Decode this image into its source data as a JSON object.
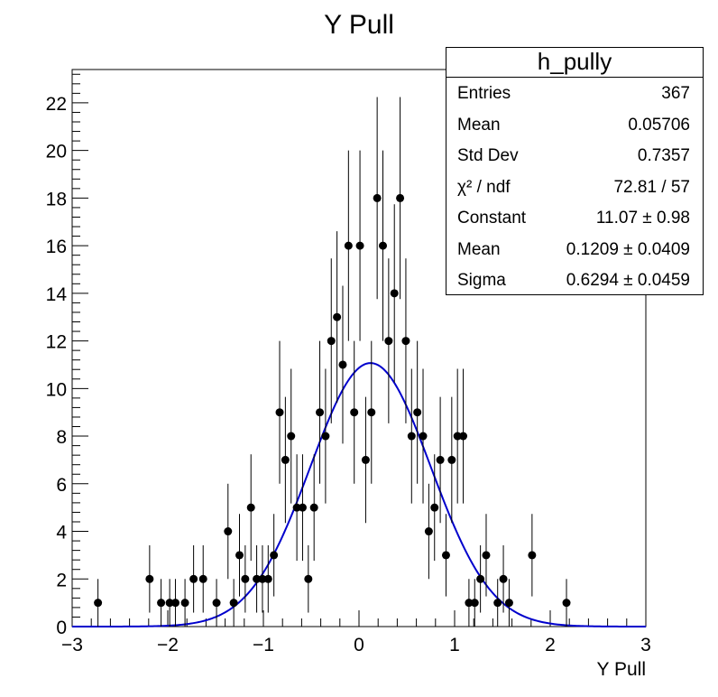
{
  "chart_data": {
    "type": "scatter",
    "title": "Y Pull",
    "xlabel": "Y Pull",
    "ylabel": "",
    "xlim": [
      -3,
      3
    ],
    "ylim": [
      0,
      23.4
    ],
    "x_ticks": [
      "−3",
      "−2",
      "−1",
      "0",
      "1",
      "2",
      "3"
    ],
    "y_ticks": [
      "0",
      "2",
      "4",
      "6",
      "8",
      "10",
      "12",
      "14",
      "16",
      "18",
      "20",
      "22"
    ],
    "grid": false,
    "marker_color": "#000000",
    "fit_color": "#0000cc",
    "series": [
      {
        "x": [
          -2.73,
          -2.19,
          -2.07,
          -1.98,
          -1.92,
          -1.82,
          -1.73,
          -1.63,
          -1.49,
          -1.37,
          -1.31,
          -1.25,
          -1.19,
          -1.13,
          -1.07,
          -1.01,
          -0.95,
          -0.89,
          -0.83,
          -0.77,
          -0.71,
          -0.65,
          -0.59,
          -0.53,
          -0.47,
          -0.41,
          -0.35,
          -0.29,
          -0.23,
          -0.17,
          -0.11,
          -0.05,
          0.01,
          0.07,
          0.13,
          0.19,
          0.25,
          0.31,
          0.37,
          0.43,
          0.49,
          0.55,
          0.61,
          0.67,
          0.73,
          0.79,
          0.85,
          0.91,
          0.97,
          1.03,
          1.09,
          1.15,
          1.21,
          1.27,
          1.33,
          1.45,
          1.51,
          1.57,
          1.81,
          2.17
        ],
        "y": [
          1,
          2,
          1,
          1,
          1,
          1,
          2,
          2,
          1,
          4,
          1,
          3,
          2,
          5,
          2,
          2,
          2,
          3,
          9,
          7,
          8,
          5,
          5,
          2,
          5,
          9,
          8,
          12,
          13,
          11,
          16,
          9,
          16,
          7,
          9,
          18,
          16,
          12,
          14,
          18,
          12,
          8,
          9,
          8,
          4,
          5,
          7,
          3,
          7,
          8,
          8,
          1,
          1,
          2,
          3,
          1,
          2,
          1,
          3,
          1
        ]
      }
    ],
    "fit": {
      "function": "gaus",
      "constant": 11.07,
      "mean": 0.1209,
      "sigma": 0.6294
    }
  },
  "stats": {
    "title": "h_pully",
    "rows": [
      {
        "label": "Entries",
        "value": "367"
      },
      {
        "label": "Mean",
        "value": "0.05706"
      },
      {
        "label": "Std Dev",
        "value": "0.7357"
      },
      {
        "label": "χ² / ndf",
        "value": "72.81 / 57"
      },
      {
        "label": "Constant",
        "value": "11.07 ± 0.98"
      },
      {
        "label": "Mean",
        "value": "0.1209 ± 0.0409"
      },
      {
        "label": "Sigma",
        "value": "0.6294 ± 0.0459"
      }
    ]
  }
}
